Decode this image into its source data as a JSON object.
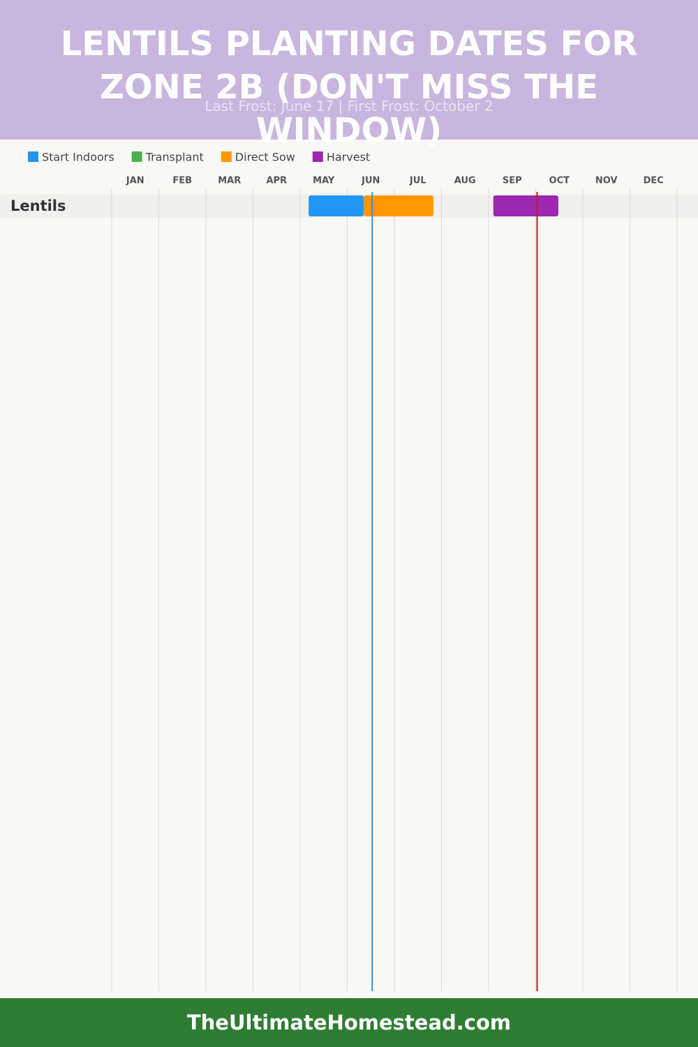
{
  "header": {
    "title": "LENTILS PLANTING DATES FOR ZONE 2B (DON'T MISS THE WINDOW)",
    "subtitle": "Last Frost: June 17 | First Frost: October 2"
  },
  "chart_data": {
    "type": "gantt",
    "categories": [
      "Lentils"
    ],
    "xlim": [
      0,
      12
    ],
    "xticks": [
      {
        "value": 0,
        "label": "JAN"
      },
      {
        "value": 1,
        "label": "FEB"
      },
      {
        "value": 2,
        "label": "MAR"
      },
      {
        "value": 3,
        "label": "APR"
      },
      {
        "value": 4,
        "label": "MAY"
      },
      {
        "value": 5,
        "label": "JUN"
      },
      {
        "value": 6,
        "label": "JUL"
      },
      {
        "value": 7,
        "label": "AUG"
      },
      {
        "value": 8,
        "label": "SEP"
      },
      {
        "value": 9,
        "label": "OCT"
      },
      {
        "value": 10,
        "label": "NOV"
      },
      {
        "value": 11,
        "label": "DEC"
      }
    ],
    "grid": true,
    "series": [
      {
        "name": "Start Indoors",
        "color": "#2196f3",
        "values": [
          [
            4.18,
            5.35
          ]
        ]
      },
      {
        "name": "Transplant",
        "color": "#4caf50",
        "values": [
          null
        ]
      },
      {
        "name": "Direct Sow",
        "color": "#ff9800",
        "values": [
          [
            5.35,
            6.83
          ]
        ]
      },
      {
        "name": "Harvest",
        "color": "#9c27b0",
        "values": [
          [
            8.1,
            9.48
          ]
        ]
      }
    ],
    "markers": [
      {
        "value": 5.53,
        "color": "#3a8fd0"
      },
      {
        "value": 9.03,
        "color": "#b22222"
      }
    ]
  },
  "footer": {
    "text": "TheUltimateHomestead.com"
  }
}
